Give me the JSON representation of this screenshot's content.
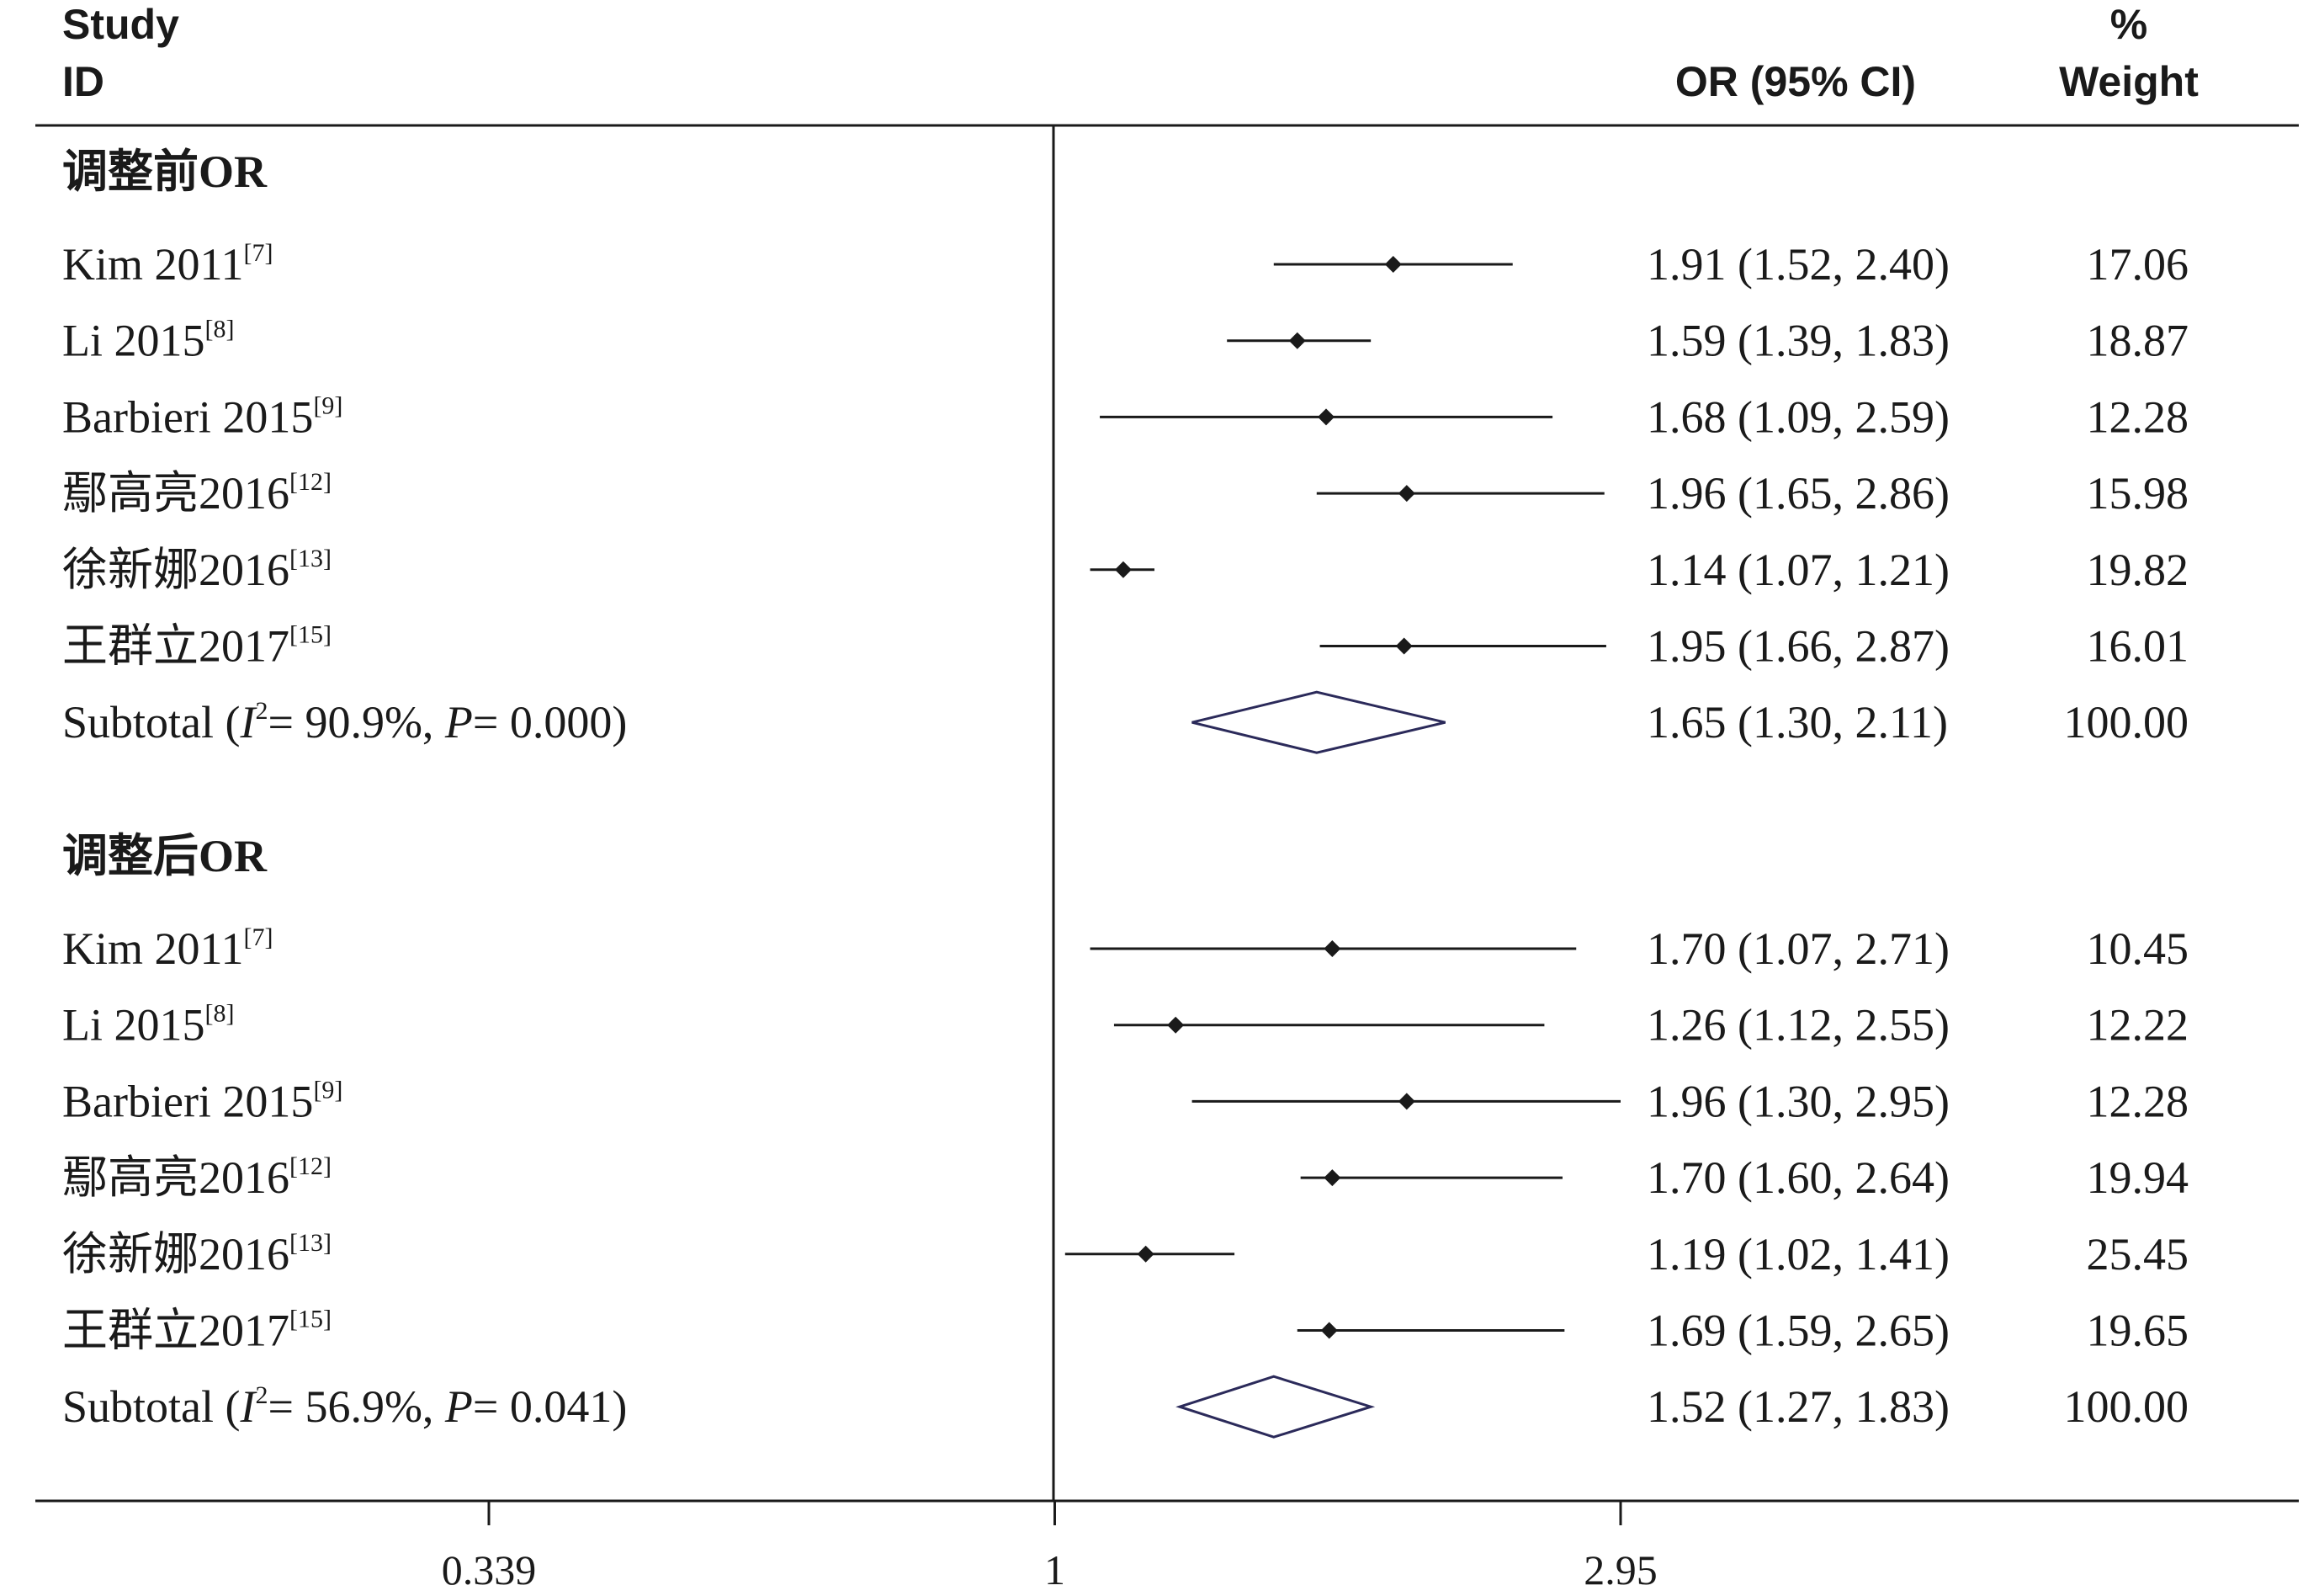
{
  "header": {
    "study": "Study",
    "id": "ID",
    "or_ci": "OR (95% CI)",
    "pct": "%",
    "weight": "Weight"
  },
  "chart_data": {
    "type": "forest",
    "x_scale": "log",
    "xlim": [
      0.339,
      2.95
    ],
    "null_line": 1,
    "x_ticks": [
      "0.339",
      "1",
      "2.95"
    ],
    "groups": [
      {
        "title": "调整前OR",
        "studies": [
          {
            "name": "Kim 2011",
            "ref": "[7]",
            "or": 1.91,
            "lower": 1.52,
            "upper": 2.4,
            "ci_text": "1.91 (1.52, 2.40)",
            "weight": "17.06"
          },
          {
            "name": "Li 2015",
            "ref": "[8]",
            "or": 1.59,
            "lower": 1.39,
            "upper": 1.83,
            "ci_text": "1.59 (1.39, 1.83)",
            "weight": "18.87"
          },
          {
            "name": "Barbieri 2015",
            "ref": "[9]",
            "or": 1.68,
            "lower": 1.09,
            "upper": 2.59,
            "ci_text": "1.68 (1.09, 2.59)",
            "weight": "12.28"
          },
          {
            "name": "鄢高亮2016",
            "ref": "[12]",
            "or": 1.96,
            "lower": 1.65,
            "upper": 2.86,
            "ci_text": "1.96 (1.65, 2.86)",
            "weight": "15.98"
          },
          {
            "name": "徐新娜2016",
            "ref": "[13]",
            "or": 1.14,
            "lower": 1.07,
            "upper": 1.21,
            "ci_text": "1.14 (1.07, 1.21)",
            "weight": "19.82"
          },
          {
            "name": "王群立2017",
            "ref": "[15]",
            "or": 1.95,
            "lower": 1.66,
            "upper": 2.87,
            "ci_text": "1.95 (1.66, 2.87)",
            "weight": "16.01"
          }
        ],
        "subtotal": {
          "label_prefix": "Subtotal (",
          "i2_symbol": "I",
          "i2_exp": "2",
          "i2_value": "= 90.9%, ",
          "p_symbol": "P",
          "p_value": "= 0.000)",
          "or": 1.65,
          "lower": 1.3,
          "upper": 2.11,
          "ci_text": "1.65 (1.30, 2.11)",
          "weight": "100.00"
        }
      },
      {
        "title": "调整后OR",
        "studies": [
          {
            "name": "Kim 2011",
            "ref": "[7]",
            "or": 1.7,
            "lower": 1.07,
            "upper": 2.71,
            "ci_text": "1.70 (1.07, 2.71)",
            "weight": "10.45"
          },
          {
            "name": "Li 2015",
            "ref": "[8]",
            "or": 1.26,
            "lower": 1.12,
            "upper": 2.55,
            "ci_text": "1.26 (1.12, 2.55)",
            "weight": "12.22"
          },
          {
            "name": "Barbieri 2015",
            "ref": "[9]",
            "or": 1.96,
            "lower": 1.3,
            "upper": 2.95,
            "ci_text": "1.96 (1.30, 2.95)",
            "weight": "12.28"
          },
          {
            "name": "鄢高亮2016",
            "ref": "[12]",
            "or": 1.7,
            "lower": 1.6,
            "upper": 2.64,
            "ci_text": "1.70 (1.60, 2.64)",
            "weight": "19.94"
          },
          {
            "name": "徐新娜2016",
            "ref": "[13]",
            "or": 1.19,
            "lower": 1.02,
            "upper": 1.41,
            "ci_text": "1.19 (1.02, 1.41)",
            "weight": "25.45"
          },
          {
            "name": "王群立2017",
            "ref": "[15]",
            "or": 1.69,
            "lower": 1.59,
            "upper": 2.65,
            "ci_text": "1.69 (1.59, 2.65)",
            "weight": "19.65"
          }
        ],
        "subtotal": {
          "label_prefix": "Subtotal (",
          "i2_symbol": "I",
          "i2_exp": "2",
          "i2_value": "= 56.9%, ",
          "p_symbol": "P",
          "p_value": "= 0.041)",
          "or": 1.52,
          "lower": 1.27,
          "upper": 1.83,
          "ci_text": "1.52 (1.27, 1.83)",
          "weight": "100.00"
        }
      }
    ],
    "colors": {
      "diamond": "#2b2a5a",
      "line": "#1a1a1a",
      "point": "#1a1a1a"
    }
  }
}
